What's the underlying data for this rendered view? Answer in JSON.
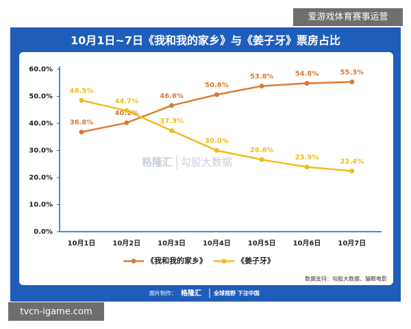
{
  "chart_data": {
    "type": "line",
    "title": "10月1日~7日《我和我的家乡》与《姜子牙》票房占比",
    "categories": [
      "10月1日",
      "10月2日",
      "10月3日",
      "10月4日",
      "10月5日",
      "10月6日",
      "10月7日"
    ],
    "series": [
      {
        "name": "《我和我的家乡》",
        "color": "#dc7b35",
        "values": [
          36.8,
          40.2,
          46.6,
          50.6,
          53.8,
          54.8,
          55.3
        ],
        "value_labels": [
          "36.8%",
          "40.2%",
          "46.6%",
          "50.6%",
          "53.8%",
          "54.8%",
          "55.3%"
        ]
      },
      {
        "name": "《姜子牙》",
        "color": "#eebd1a",
        "values": [
          48.5,
          44.7,
          37.3,
          30.0,
          26.6,
          23.9,
          22.4
        ],
        "value_labels": [
          "48.5%",
          "44.7%",
          "37.3%",
          "30.0%",
          "26.6%",
          "23.9%",
          "22.4%"
        ]
      }
    ],
    "ylim": [
      0,
      60
    ],
    "yticks": [
      {
        "value": 0,
        "label": "0.0%"
      },
      {
        "value": 10,
        "label": "10.0%"
      },
      {
        "value": 20,
        "label": "20.0%"
      },
      {
        "value": 30,
        "label": "30.0%"
      },
      {
        "value": 40,
        "label": "40.0%"
      },
      {
        "value": 50,
        "label": "50.0%"
      },
      {
        "value": 60,
        "label": "60.0%"
      }
    ],
    "grid": false,
    "legend": "bottom",
    "source": "数据支持：勾股大数据、猫眼电影"
  },
  "watermark": {
    "brand": "格隆汇",
    "partner": "勾股大数据"
  },
  "footer": {
    "made_by": "图片制作：",
    "brand": "格隆汇",
    "slogan": "全球视野 下注中国"
  },
  "overlay": {
    "top_right": "爱游戏体育赛事运营",
    "bottom_left": "tvcn-igame.com"
  }
}
